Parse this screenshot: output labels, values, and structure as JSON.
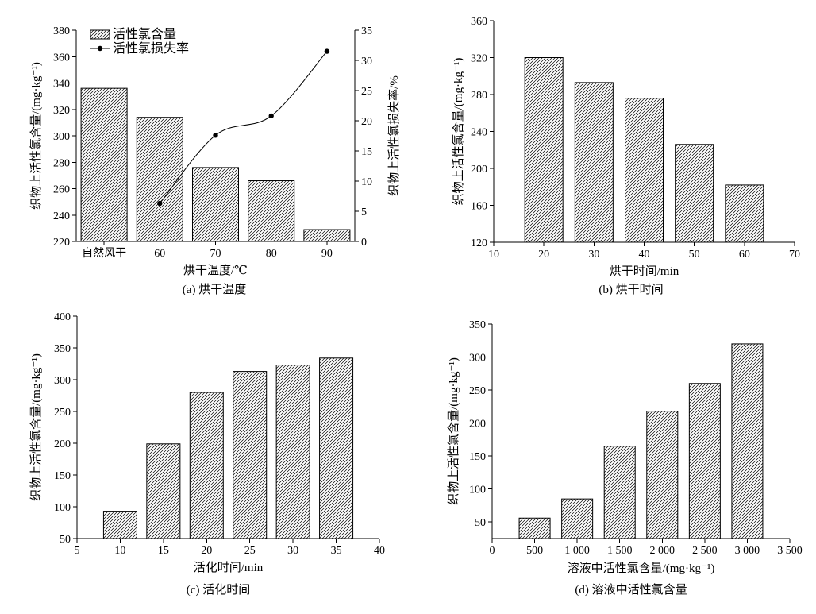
{
  "chart_data": [
    {
      "type": "bar",
      "caption": "(a) 烘干温度",
      "xlabel": "烘干温度/℃",
      "ylabel": "织物上活性氯含量/(mg·kg⁻¹)",
      "y2label": "织物上活性氯损失率/%",
      "categories": [
        "自然风干",
        "60",
        "70",
        "80",
        "90"
      ],
      "ylim": [
        220,
        380
      ],
      "yticks": [
        220,
        240,
        260,
        280,
        300,
        320,
        340,
        360,
        380
      ],
      "y2lim": [
        0,
        35
      ],
      "y2ticks": [
        0,
        5,
        10,
        15,
        20,
        25,
        30,
        35
      ],
      "series": [
        {
          "name": "活性氯含量",
          "type": "bar",
          "yaxis": 1,
          "values": [
            336,
            314,
            276,
            266,
            229
          ]
        },
        {
          "name": "活性氯损失率",
          "type": "line",
          "yaxis": 2,
          "smooth": true,
          "values": [
            null,
            6.3,
            17.6,
            20.8,
            31.5
          ]
        }
      ],
      "legend": "top-left",
      "grid": false
    },
    {
      "type": "bar",
      "caption": "(b) 烘干时间",
      "xlabel": "烘干时间/min",
      "ylabel": "织物上活性氯含量/(mg·kg⁻¹)",
      "x": [
        20,
        30,
        40,
        50,
        60
      ],
      "values": [
        320,
        293,
        276,
        226,
        182
      ],
      "xlim": [
        10,
        70
      ],
      "xticks": [
        10,
        20,
        30,
        40,
        50,
        60,
        70
      ],
      "ylim": [
        120,
        360
      ],
      "yticks": [
        120,
        160,
        200,
        240,
        280,
        320,
        360
      ],
      "grid": false
    },
    {
      "type": "bar",
      "caption": "(c) 活化时间",
      "xlabel": "活化时间/min",
      "ylabel": "织物上活性氯含量/(mg·kg⁻¹)",
      "x": [
        10,
        15,
        20,
        25,
        30,
        35
      ],
      "values": [
        93,
        199,
        280,
        313,
        323,
        334
      ],
      "xlim": [
        5,
        40
      ],
      "xticks": [
        5,
        10,
        15,
        20,
        25,
        30,
        35,
        40
      ],
      "ylim": [
        50,
        400
      ],
      "yticks": [
        50,
        100,
        150,
        200,
        250,
        300,
        350,
        400
      ],
      "grid": false
    },
    {
      "type": "bar",
      "caption": "(d) 溶液中活性氯含量",
      "xlabel": "溶液中活性氯含量/(mg·kg⁻¹)",
      "ylabel": "织物上活性氯含量/(mg·kg⁻¹)",
      "x": [
        500,
        1000,
        1500,
        2000,
        2500,
        3000
      ],
      "values": [
        56,
        85,
        165,
        218,
        260,
        320
      ],
      "xlim": [
        0,
        3500
      ],
      "xticks": [
        0,
        500,
        1000,
        1500,
        2000,
        2500,
        3000,
        3500
      ],
      "xtick_labels": [
        "0",
        "500",
        "1 000",
        "1 500",
        "2 000",
        "2 500",
        "3 000",
        "3 500"
      ],
      "ylim": [
        25,
        350
      ],
      "yticks": [
        50,
        100,
        150,
        200,
        250,
        300,
        350
      ],
      "grid": false
    }
  ]
}
